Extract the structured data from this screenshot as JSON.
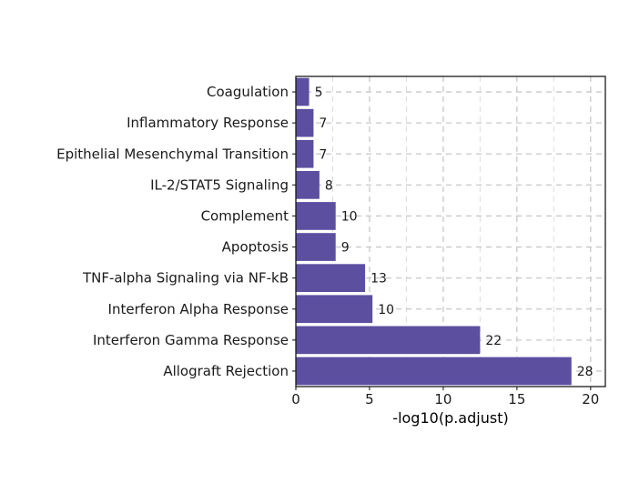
{
  "chart_data": {
    "type": "bar",
    "orientation": "horizontal",
    "title": "",
    "xlabel": "-log10(p.adjust)",
    "ylabel": "",
    "xlim": [
      0,
      21
    ],
    "x_ticks": [
      0,
      5,
      10,
      15,
      20
    ],
    "grid": true,
    "grid_style": "dashed",
    "bar_color": "#5C4FA0",
    "categories": [
      "Coagulation",
      "Inflammatory Response",
      "Epithelial Mesenchymal Transition",
      "IL-2/STAT5 Signaling",
      "Complement",
      "Apoptosis",
      "TNF-alpha Signaling via NF-kB",
      "Interferon Alpha Response",
      "Interferon Gamma Response",
      "Allograft Rejection"
    ],
    "values": [
      0.9,
      1.2,
      1.2,
      1.6,
      2.7,
      2.7,
      4.7,
      5.2,
      12.5,
      18.7
    ],
    "labels": [
      "5",
      "7",
      "7",
      "8",
      "10",
      "9",
      "13",
      "10",
      "22",
      "28"
    ]
  }
}
